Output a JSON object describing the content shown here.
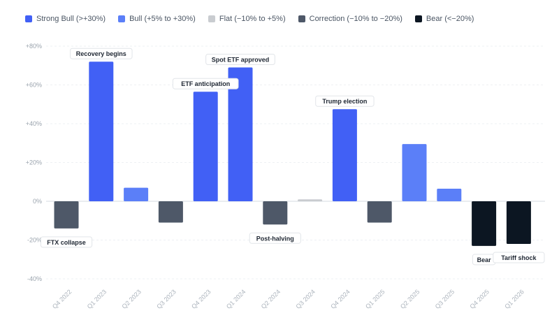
{
  "chart_data": {
    "type": "bar",
    "title": "",
    "xlabel": "",
    "ylabel": "",
    "ylim": [
      -40,
      80
    ],
    "yticks": [
      80,
      60,
      40,
      20,
      0,
      -20,
      -40
    ],
    "ytick_labels": [
      "+80%",
      "+60%",
      "+40%",
      "+20%",
      "0%",
      "-20%",
      "-40%"
    ],
    "grid": true,
    "legend_position": "top-left",
    "legend": [
      {
        "label": "Strong Bull (>+30%)",
        "color": "#4160f5"
      },
      {
        "label": "Bull (+5% to +30%)",
        "color": "#5b7ff8"
      },
      {
        "label": "Flat (−10% to +5%)",
        "color": "#c9ccd0"
      },
      {
        "label": "Correction (−10% to −20%)",
        "color": "#4e5868"
      },
      {
        "label": "Bear (<−20%)",
        "color": "#0c1622"
      }
    ],
    "categories": [
      "Q4 2022",
      "Q1 2023",
      "Q2 2023",
      "Q3 2023",
      "Q4 2023",
      "Q1 2024",
      "Q2 2024",
      "Q3 2024",
      "Q4 2024",
      "Q1 2025",
      "Q2 2025",
      "Q3 2025",
      "Q4 2025",
      "Q1 2026"
    ],
    "values": [
      -14,
      72,
      7,
      -11,
      56.5,
      69,
      -12,
      1,
      47.5,
      -11,
      29.5,
      6.5,
      -23,
      -22
    ],
    "bar_classes": [
      3,
      0,
      1,
      3,
      0,
      0,
      3,
      2,
      0,
      3,
      1,
      1,
      4,
      4
    ],
    "annotations": [
      {
        "index": 0,
        "text": "FTX collapse"
      },
      {
        "index": 1,
        "text": "Recovery begins"
      },
      {
        "index": 4,
        "text": "ETF anticipation"
      },
      {
        "index": 5,
        "text": "Spot ETF approved"
      },
      {
        "index": 6,
        "text": "Post-halving"
      },
      {
        "index": 8,
        "text": "Trump election"
      },
      {
        "index": 12,
        "text": "Bear"
      },
      {
        "index": 13,
        "text": "Tariff shock"
      }
    ]
  }
}
